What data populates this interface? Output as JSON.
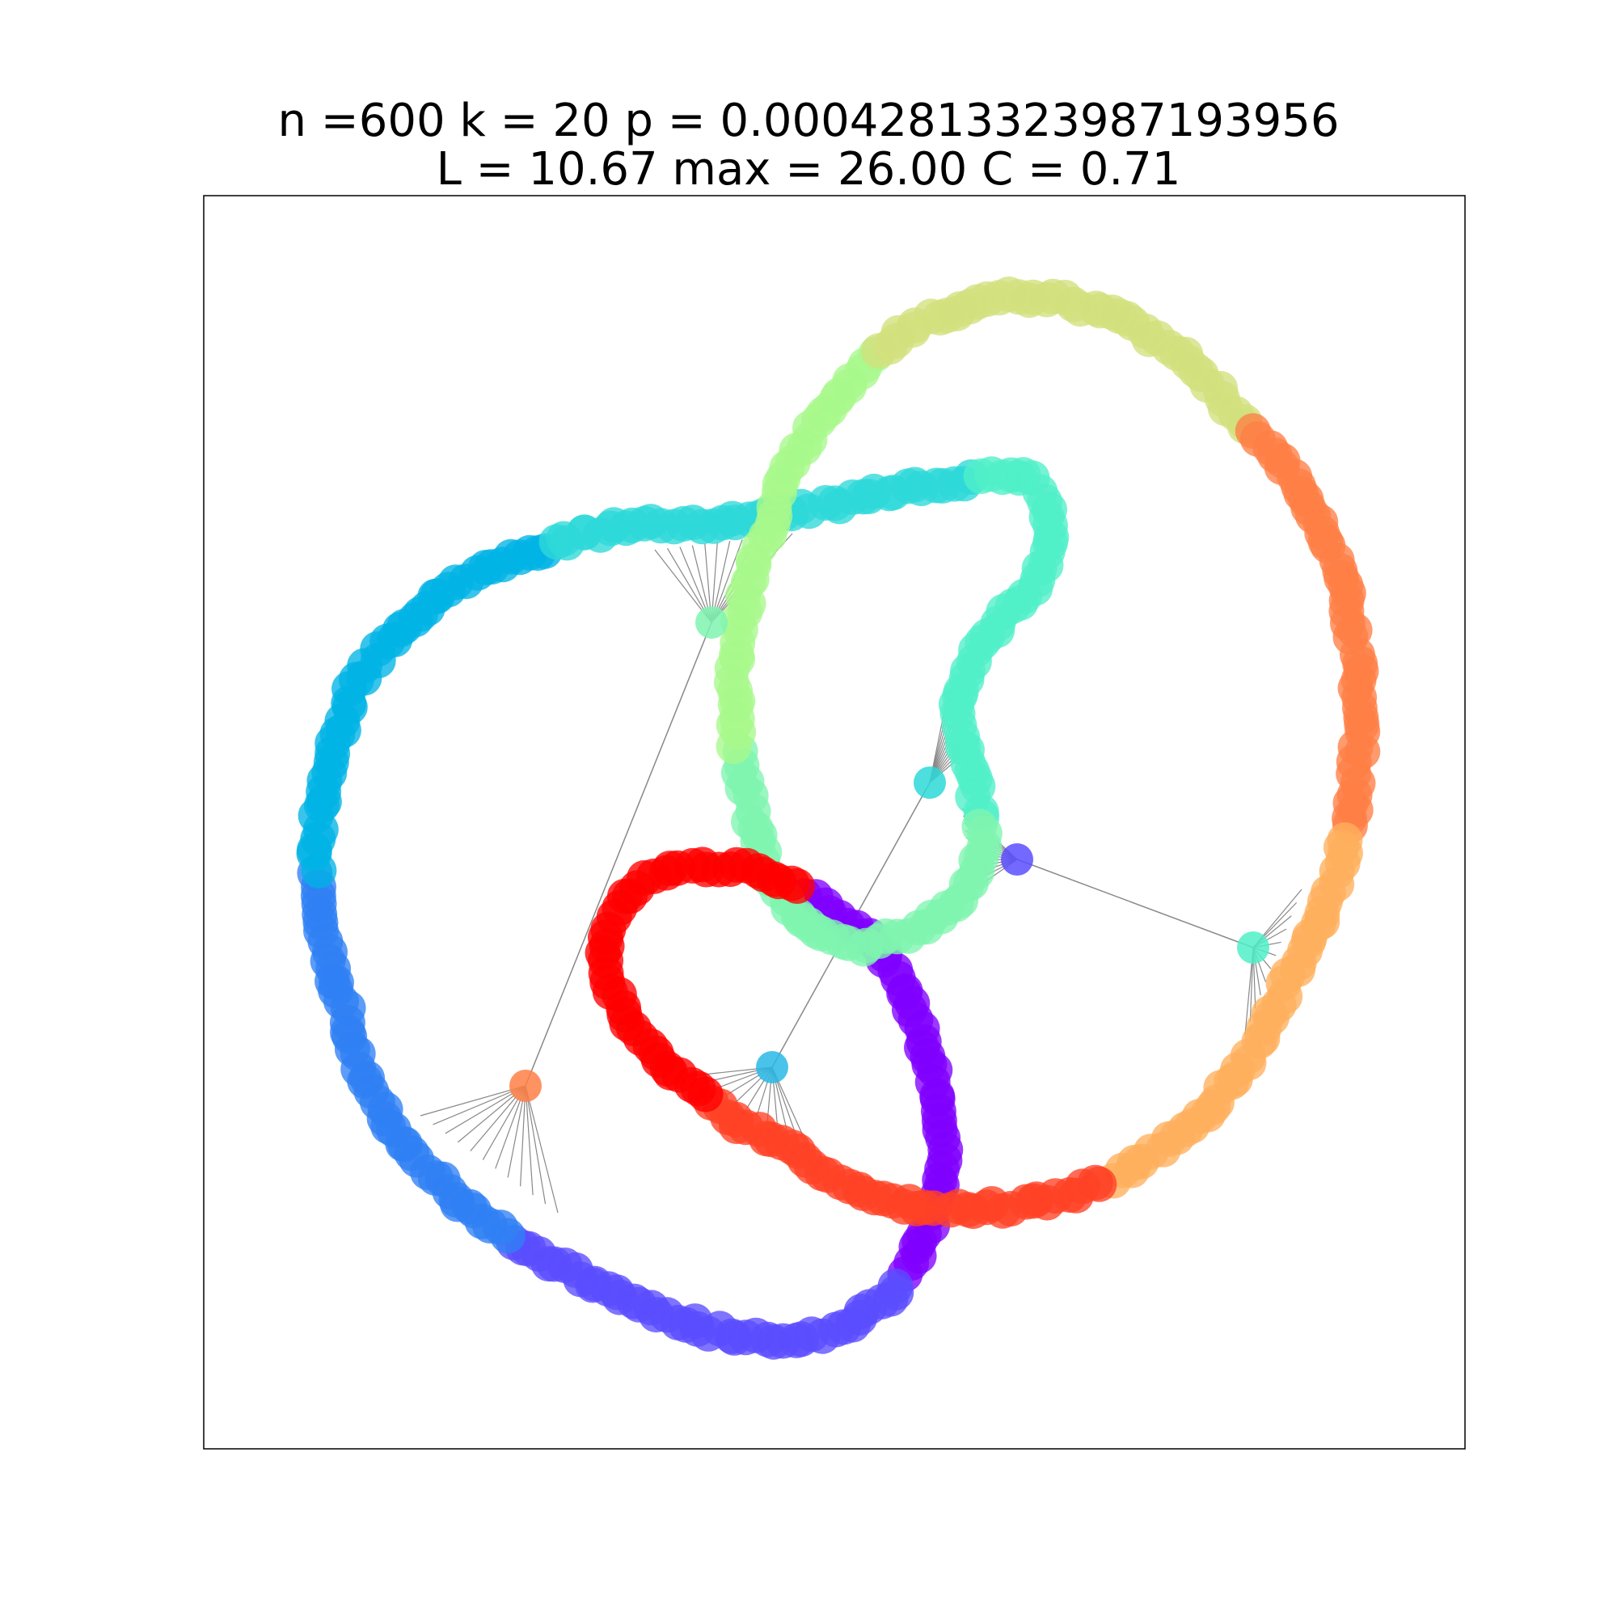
{
  "title": {
    "line1": "n =600 k = 20 p = 0.0004281332398719395 6",
    "line2": "L = 10.67 max = 26.00 C = 0.71"
  },
  "graph": {
    "type": "network-graph",
    "layout": "ring lattice with shortcuts",
    "n": 600,
    "k": 20,
    "p": "0.0004281332398719395 6",
    "L": "10.67",
    "max": "26.00",
    "C": "0.71",
    "colormap": "rainbow",
    "edge_color": "#888888"
  }
}
